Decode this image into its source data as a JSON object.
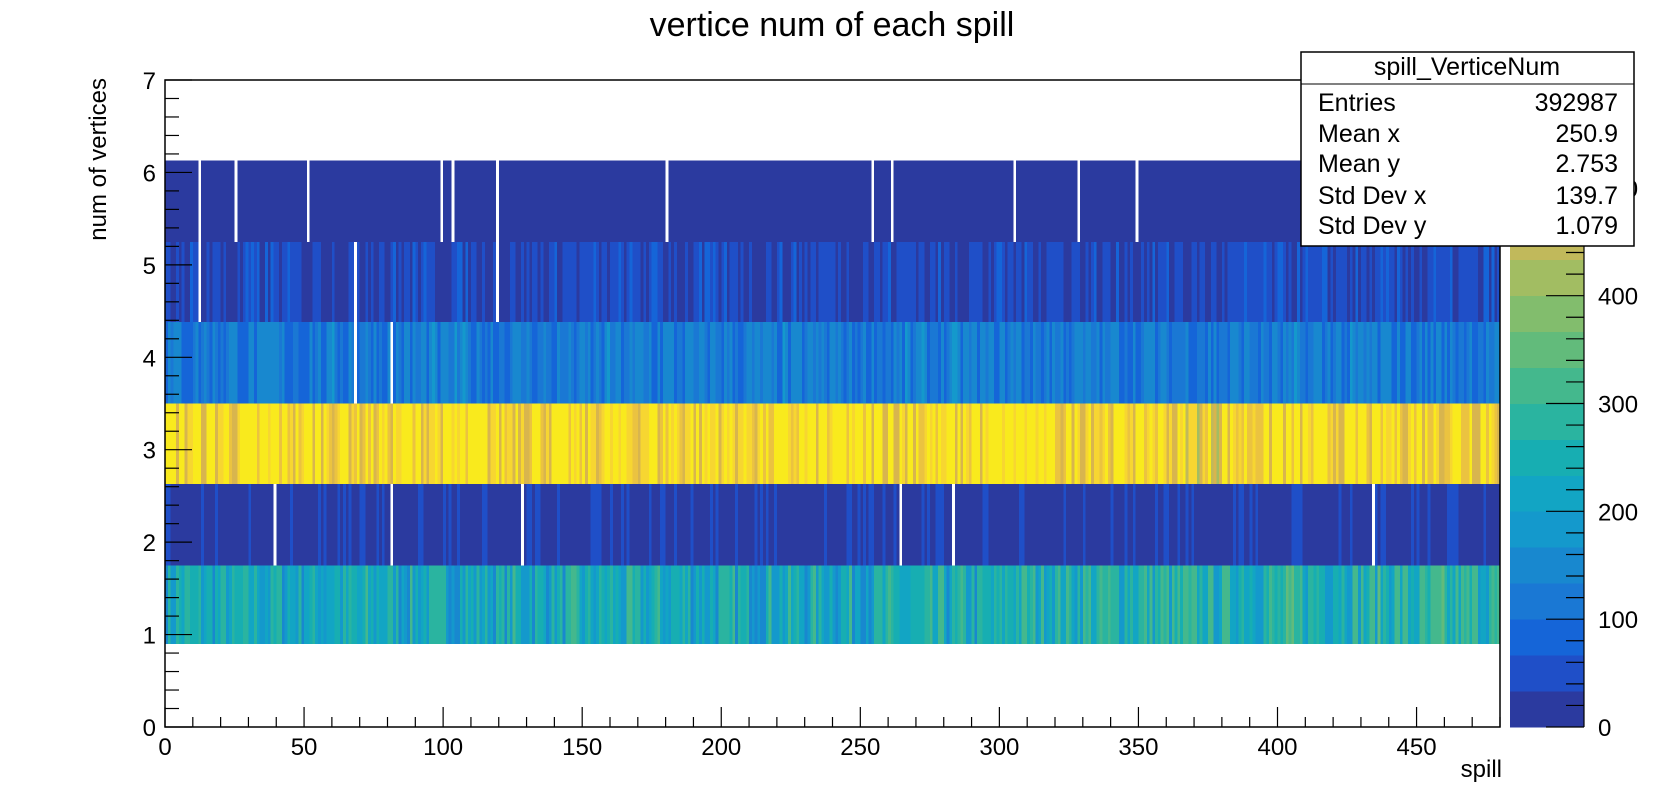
{
  "chart_data": {
    "type": "heatmap",
    "title": "vertice num of each spill",
    "xlabel": "spill",
    "ylabel": "num of vertices",
    "xlim": [
      0,
      480
    ],
    "ylim": [
      0,
      7
    ],
    "x_ticks": [
      "0",
      "50",
      "100",
      "150",
      "200",
      "250",
      "300",
      "350",
      "400",
      "450"
    ],
    "y_ticks": [
      "0",
      "1",
      "2",
      "3",
      "4",
      "5",
      "6",
      "7"
    ],
    "z_ticks": [
      "0",
      "100",
      "200",
      "300",
      "400",
      "500"
    ],
    "zlim": [
      0,
      600
    ],
    "x_bin_range": [
      0,
      480
    ],
    "y_bands": [
      {
        "label": "1",
        "y": [
          0.9,
          1.75
        ],
        "typical_count": 230
      },
      {
        "label": "2",
        "y": [
          1.75,
          2.63
        ],
        "typical_count": 20
      },
      {
        "label": "3",
        "y": [
          2.63,
          3.5
        ],
        "typical_count": 560
      },
      {
        "label": "4",
        "y": [
          3.5,
          4.38
        ],
        "typical_count": 120
      },
      {
        "label": "5",
        "y": [
          4.38,
          5.25
        ],
        "typical_count": 40
      },
      {
        "label": "6",
        "y": [
          5.25,
          6.13
        ],
        "typical_count": 10
      }
    ],
    "empty_bins": [
      {
        "band": "1",
        "x": []
      },
      {
        "band": "2",
        "x": [
          39,
          81,
          128,
          264,
          283,
          434
        ]
      },
      {
        "band": "3",
        "x": []
      },
      {
        "band": "4",
        "x": [
          68,
          81
        ]
      },
      {
        "band": "5",
        "x": [
          12,
          68,
          119
        ]
      },
      {
        "band": "6",
        "x": [
          12,
          25,
          51,
          99,
          103,
          119,
          180,
          254,
          261,
          305,
          328,
          349
        ]
      }
    ],
    "palette": [
      "#2b3a9f",
      "#1f4fc8",
      "#1565d8",
      "#1a78d4",
      "#1888cf",
      "#1499cc",
      "#12a5c4",
      "#17aeb2",
      "#2ab4a0",
      "#44b88d",
      "#62bb7b",
      "#82bd6d",
      "#a2bd62",
      "#c1b95b",
      "#d8b54e",
      "#ebc340",
      "#f7d631",
      "#f9ea1d"
    ],
    "stats_box": {
      "title": "spill_VerticeNum",
      "rows": [
        {
          "label": "Entries",
          "value": "392987"
        },
        {
          "label": "Mean x",
          "value": "250.9"
        },
        {
          "label": "Mean y",
          "value": "2.753"
        },
        {
          "label": "Std Dev x",
          "value": "139.7"
        },
        {
          "label": "Std Dev y",
          "value": "1.079"
        }
      ]
    }
  }
}
